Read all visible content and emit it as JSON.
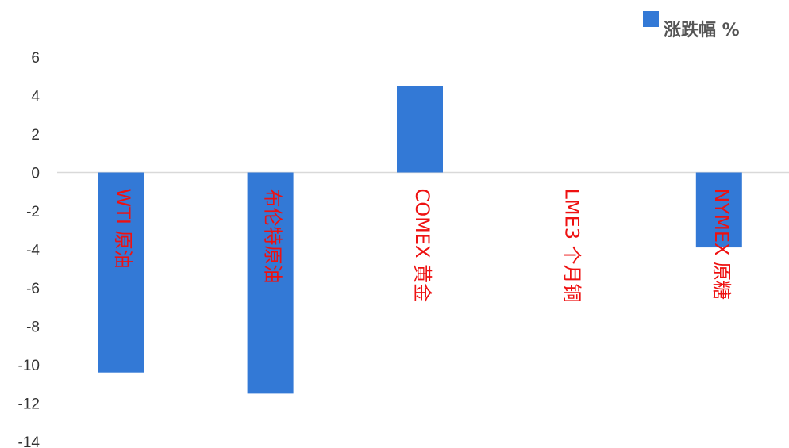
{
  "chart_data": {
    "type": "bar",
    "categories": [
      "WTI 原油",
      "布伦特原油",
      "COMEX 黄金",
      "LME3 个月铜",
      "NYMEX 原糖"
    ],
    "series": [
      {
        "name": "涨跌幅 %",
        "values": [
          -10.4,
          -11.5,
          4.5,
          0,
          -3.9
        ]
      }
    ],
    "ylim": [
      -14,
      6
    ],
    "yticks": [
      6,
      4,
      2,
      0,
      -2,
      -4,
      -6,
      -8,
      -10,
      -12,
      -14
    ],
    "ytick_labels": [
      "6",
      "4",
      "2",
      "0",
      "-2",
      "-4",
      "-6",
      "-8",
      "-10",
      "-12",
      "-14"
    ],
    "legend_position": "top-right",
    "grid": false,
    "colors": {
      "bar": "#3379d6",
      "category_label": "#ee1111",
      "zero_line": "#d9d9d9",
      "axis_text": "#333333",
      "legend_text": "#555555"
    }
  }
}
